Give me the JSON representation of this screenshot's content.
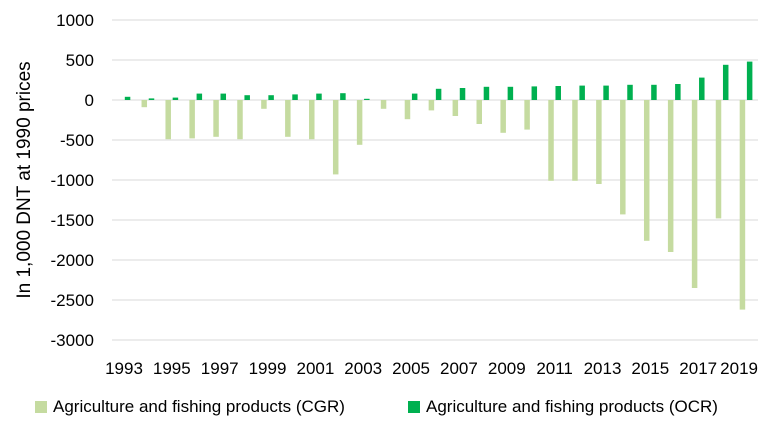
{
  "chart_data": {
    "type": "bar",
    "title": "",
    "xlabel": "",
    "ylabel": "In 1,000 DNT at 1990 prices",
    "ylim": [
      -3000,
      1000
    ],
    "yticks": [
      1000,
      500,
      0,
      -500,
      -1000,
      -1500,
      -2000,
      -2500,
      -3000
    ],
    "categories": [
      "1993",
      "1994",
      "1995",
      "1996",
      "1997",
      "1998",
      "1999",
      "2000",
      "2001",
      "2002",
      "2003",
      "2004",
      "2005",
      "2006",
      "2007",
      "2008",
      "2009",
      "2010",
      "2011",
      "2012",
      "2013",
      "2014",
      "2015",
      "2016",
      "2017",
      "2018",
      "2019"
    ],
    "xtick_labels": [
      "1993",
      "1995",
      "1997",
      "1999",
      "2001",
      "2003",
      "2005",
      "2007",
      "2009",
      "2011",
      "2013",
      "2015",
      "2017",
      "2019"
    ],
    "grid": true,
    "legend_position": "bottom",
    "series": [
      {
        "name": "Agriculture and fishing products (CGR)",
        "color": "#c5dba0",
        "values": [
          0,
          -90,
          -490,
          -480,
          -460,
          -490,
          -110,
          -460,
          -490,
          -930,
          -560,
          -110,
          -240,
          -130,
          -200,
          -300,
          -410,
          -370,
          -1010,
          -1010,
          -1050,
          -1430,
          -1760,
          -1900,
          -2350,
          -1480,
          -2620
        ]
      },
      {
        "name": "Agriculture and fishing products (OCR)",
        "color": "#00b050",
        "values": [
          40,
          20,
          30,
          80,
          80,
          60,
          60,
          70,
          80,
          85,
          15,
          0,
          80,
          140,
          150,
          165,
          165,
          170,
          175,
          180,
          180,
          190,
          190,
          200,
          280,
          440,
          480
        ]
      }
    ]
  }
}
